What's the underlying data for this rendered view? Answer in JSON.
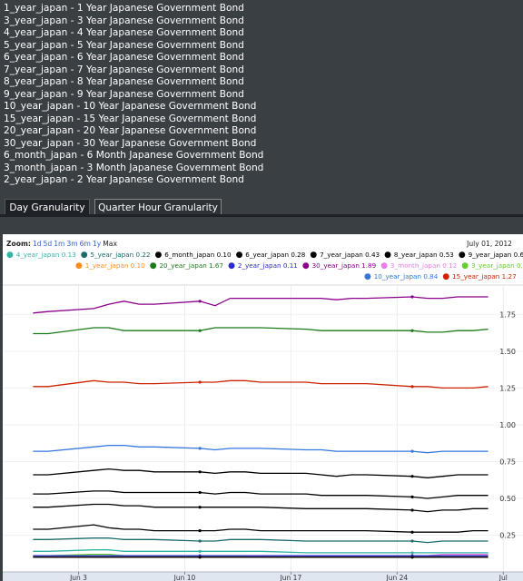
{
  "bond_list": [
    "1_year_japan - 1 Year Japanese Government Bond",
    "3_year_japan - 3 Year Japanese Government Bond",
    "4_year_japan - 4 Year Japanese Government Bond",
    "5_year_japan - 5 Year Japanese Government Bond",
    "6_year_japan - 6 Year Japanese Government Bond",
    "7_year_japan - 7 Year Japanese Government Bond",
    "8_year_japan - 8 Year Japanese Government Bond",
    "9_year_japan - 9 Year Japanese Government Bond",
    "10_year_japan - 10 Year Japanese Government Bond",
    "15_year_japan - 15 Year Japanese Government Bond",
    "20_year_japan - 20 Year Japanese Government Bond",
    "30_year_japan - 30 Year Japanese Government Bond",
    "6_month_japan - 6 Month Japanese Government Bond",
    "3_month_japan - 3 Month Japanese Government Bond",
    "2_year_japan - 2 Year Japanese Government Bond"
  ],
  "tabs": {
    "day": "Day Granularity",
    "quarter": "Quarter Hour Granularity"
  },
  "zoom": {
    "label": "Zoom:",
    "buttons": [
      "1d",
      "5d",
      "1m",
      "3m",
      "6m",
      "1y",
      "Max"
    ]
  },
  "date_label": "July 01, 2012",
  "legend": [
    {
      "name": "4_year_japan",
      "value": "0.13",
      "color": "#33b3a6"
    },
    {
      "name": "5_year_japan",
      "value": "0.22",
      "color": "#1a6b6b"
    },
    {
      "name": "6_month_japan",
      "value": "0.10",
      "color": "#000000"
    },
    {
      "name": "6_year_japan",
      "value": "0.28",
      "color": "#000000"
    },
    {
      "name": "7_year_japan",
      "value": "0.43",
      "color": "#000000"
    },
    {
      "name": "8_year_japan",
      "value": "0.53",
      "color": "#000000"
    },
    {
      "name": "9_year_japan",
      "value": "0.67",
      "color": "#000000"
    },
    {
      "name": "1_year_japan",
      "value": "0.10",
      "color": "#ff8c1a"
    },
    {
      "name": "20_year_japan",
      "value": "1.67",
      "color": "#1a7a1a"
    },
    {
      "name": "2_year_japan",
      "value": "0.11",
      "color": "#2a2acc"
    },
    {
      "name": "30_year_japan",
      "value": "1.89",
      "color": "#8b008b"
    },
    {
      "name": "3_month_japan",
      "value": "0.12",
      "color": "#e680e6"
    },
    {
      "name": "3_year_japan",
      "value": "0.11",
      "color": "#66cc33"
    },
    {
      "name": "10_year_japan",
      "value": "0.84",
      "color": "#3377dd"
    },
    {
      "name": "15_year_japan",
      "value": "1.27",
      "color": "#cc2200"
    }
  ],
  "chart_data": {
    "type": "line",
    "x_ticks": [
      "Jun 3",
      "Jun 10",
      "Jun 17",
      "Jun 24",
      "Jul"
    ],
    "y_ticks": [
      0.25,
      0.5,
      0.75,
      1.0,
      1.25,
      1.5,
      1.75
    ],
    "y_tick_labels": [
      "0.25",
      "0.50",
      "0.75",
      "1.00",
      "1.25",
      "1.50",
      "1.75"
    ],
    "ylim": [
      0.0,
      1.95
    ],
    "x": [
      "2012-05-31",
      "2012-06-01",
      "2012-06-04",
      "2012-06-05",
      "2012-06-06",
      "2012-06-07",
      "2012-06-08",
      "2012-06-11",
      "2012-06-12",
      "2012-06-13",
      "2012-06-14",
      "2012-06-15",
      "2012-06-18",
      "2012-06-19",
      "2012-06-20",
      "2012-06-21",
      "2012-06-22",
      "2012-06-25",
      "2012-06-26",
      "2012-06-27",
      "2012-06-28",
      "2012-06-29",
      "2012-06-30"
    ],
    "series": [
      {
        "name": "30_year_japan",
        "color": "#8b008b",
        "values": [
          1.76,
          1.77,
          1.79,
          1.82,
          1.84,
          1.82,
          1.82,
          1.84,
          1.81,
          1.86,
          1.86,
          1.86,
          1.86,
          1.86,
          1.85,
          1.86,
          1.86,
          1.87,
          1.86,
          1.86,
          1.87,
          1.87,
          1.87
        ]
      },
      {
        "name": "20_year_japan",
        "color": "#1a7a1a",
        "values": [
          1.62,
          1.62,
          1.66,
          1.66,
          1.64,
          1.64,
          1.64,
          1.64,
          1.66,
          1.66,
          1.66,
          1.66,
          1.65,
          1.64,
          1.64,
          1.64,
          1.64,
          1.64,
          1.63,
          1.63,
          1.64,
          1.64,
          1.65
        ]
      },
      {
        "name": "15_year_japan",
        "color": "#cc2200",
        "values": [
          1.26,
          1.26,
          1.3,
          1.29,
          1.29,
          1.28,
          1.28,
          1.29,
          1.29,
          1.3,
          1.3,
          1.29,
          1.29,
          1.28,
          1.28,
          1.28,
          1.28,
          1.26,
          1.26,
          1.25,
          1.25,
          1.25,
          1.26
        ]
      },
      {
        "name": "10_year_japan",
        "color": "#3377dd",
        "values": [
          0.82,
          0.82,
          0.85,
          0.86,
          0.86,
          0.85,
          0.85,
          0.84,
          0.83,
          0.84,
          0.84,
          0.84,
          0.83,
          0.83,
          0.82,
          0.82,
          0.82,
          0.82,
          0.81,
          0.82,
          0.82,
          0.82,
          0.82
        ]
      },
      {
        "name": "9_year_japan",
        "color": "#000000",
        "values": [
          0.66,
          0.66,
          0.69,
          0.7,
          0.69,
          0.69,
          0.68,
          0.68,
          0.67,
          0.68,
          0.68,
          0.67,
          0.67,
          0.66,
          0.65,
          0.66,
          0.66,
          0.65,
          0.64,
          0.65,
          0.66,
          0.66,
          0.66
        ]
      },
      {
        "name": "8_year_japan",
        "color": "#000000",
        "values": [
          0.53,
          0.53,
          0.55,
          0.55,
          0.54,
          0.54,
          0.54,
          0.54,
          0.53,
          0.54,
          0.54,
          0.53,
          0.53,
          0.52,
          0.52,
          0.52,
          0.52,
          0.51,
          0.5,
          0.51,
          0.52,
          0.52,
          0.52
        ]
      },
      {
        "name": "7_year_japan",
        "color": "#000000",
        "values": [
          0.44,
          0.44,
          0.46,
          0.46,
          0.45,
          0.45,
          0.44,
          0.44,
          0.44,
          0.44,
          0.44,
          0.44,
          0.43,
          0.43,
          0.43,
          0.43,
          0.43,
          0.42,
          0.41,
          0.42,
          0.42,
          0.43,
          0.43
        ]
      },
      {
        "name": "6_year_japan",
        "color": "#000000",
        "values": [
          0.29,
          0.29,
          0.32,
          0.3,
          0.29,
          0.29,
          0.28,
          0.28,
          0.28,
          0.29,
          0.29,
          0.28,
          0.28,
          0.28,
          0.28,
          0.28,
          0.28,
          0.27,
          0.27,
          0.27,
          0.27,
          0.28,
          0.28
        ]
      },
      {
        "name": "5_year_japan",
        "color": "#1a6b6b",
        "values": [
          0.22,
          0.22,
          0.23,
          0.23,
          0.22,
          0.22,
          0.22,
          0.21,
          0.21,
          0.22,
          0.22,
          0.22,
          0.21,
          0.21,
          0.21,
          0.21,
          0.21,
          0.21,
          0.2,
          0.21,
          0.21,
          0.21,
          0.21
        ]
      },
      {
        "name": "4_year_japan",
        "color": "#33b3a6",
        "values": [
          0.14,
          0.14,
          0.15,
          0.15,
          0.14,
          0.14,
          0.14,
          0.14,
          0.14,
          0.14,
          0.14,
          0.14,
          0.13,
          0.13,
          0.13,
          0.13,
          0.13,
          0.13,
          0.13,
          0.13,
          0.13,
          0.13,
          0.13
        ]
      },
      {
        "name": "3_year_japan",
        "color": "#66cc33",
        "values": [
          0.11,
          0.11,
          0.12,
          0.12,
          0.11,
          0.11,
          0.11,
          0.11,
          0.11,
          0.11,
          0.11,
          0.11,
          0.11,
          0.11,
          0.11,
          0.11,
          0.11,
          0.11,
          0.11,
          0.11,
          0.11,
          0.11,
          0.11
        ]
      },
      {
        "name": "3_month_japan",
        "color": "#e680e6",
        "values": [
          0.1,
          0.1,
          0.1,
          0.1,
          0.1,
          0.1,
          0.1,
          0.1,
          0.1,
          0.1,
          0.1,
          0.11,
          0.11,
          0.11,
          0.11,
          0.11,
          0.11,
          0.11,
          0.11,
          0.12,
          0.12,
          0.12,
          0.12
        ]
      },
      {
        "name": "2_year_japan",
        "color": "#2a2acc",
        "values": [
          0.11,
          0.11,
          0.11,
          0.11,
          0.11,
          0.11,
          0.11,
          0.11,
          0.11,
          0.11,
          0.11,
          0.11,
          0.11,
          0.11,
          0.11,
          0.11,
          0.11,
          0.11,
          0.11,
          0.11,
          0.11,
          0.11,
          0.11
        ]
      },
      {
        "name": "1_year_japan",
        "color": "#ff8c1a",
        "values": [
          0.1,
          0.1,
          0.1,
          0.1,
          0.1,
          0.1,
          0.1,
          0.1,
          0.1,
          0.1,
          0.1,
          0.1,
          0.1,
          0.1,
          0.1,
          0.1,
          0.1,
          0.1,
          0.1,
          0.1,
          0.1,
          0.1,
          0.1
        ]
      },
      {
        "name": "6_month_japan",
        "color": "#000000",
        "values": [
          0.1,
          0.1,
          0.1,
          0.1,
          0.1,
          0.1,
          0.1,
          0.1,
          0.1,
          0.1,
          0.1,
          0.1,
          0.1,
          0.1,
          0.1,
          0.1,
          0.1,
          0.1,
          0.1,
          0.1,
          0.1,
          0.1,
          0.1
        ]
      }
    ]
  }
}
